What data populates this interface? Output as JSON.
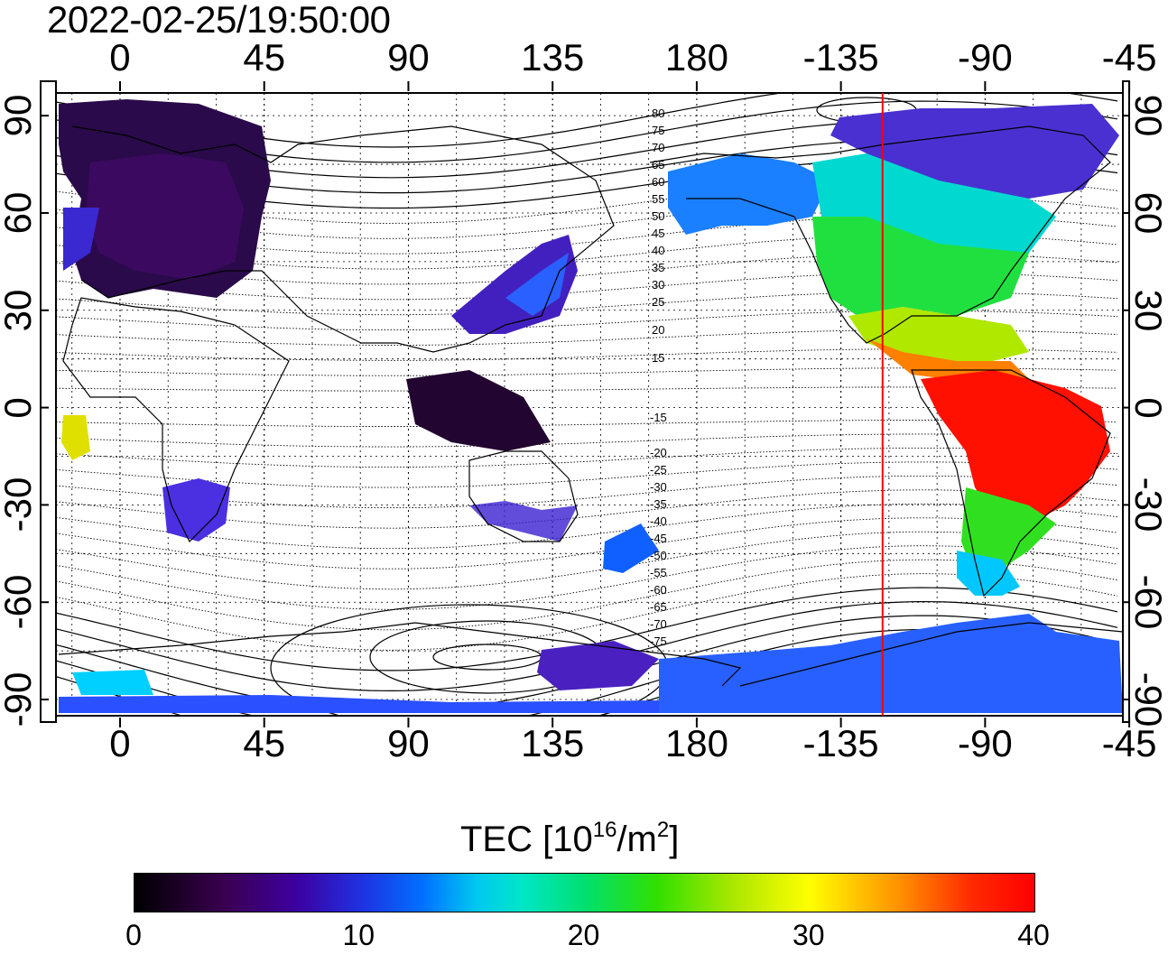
{
  "timestamp": "2022-02-25/19:50:00",
  "map": {
    "lon_ticks_top": [
      "0",
      "45",
      "90",
      "135",
      "180",
      "-135",
      "-90",
      "-45"
    ],
    "lon_ticks_bottom": [
      "0",
      "45",
      "90",
      "135",
      "180",
      "-135",
      "-90",
      "-45"
    ],
    "lat_ticks_left": [
      "90",
      "60",
      "30",
      "0",
      "-30",
      "-60",
      "-90"
    ],
    "lat_ticks_right": [
      "90",
      "60",
      "30",
      "0",
      "-30",
      "-60",
      "-90"
    ],
    "lon_range": [
      -20,
      313
    ],
    "lat_range": [
      -95,
      97
    ],
    "lon_ticks_values": [
      0,
      45,
      90,
      135,
      180,
      225,
      270,
      315
    ],
    "lat_ticks_values": [
      90,
      60,
      30,
      0,
      -30,
      -60,
      -90
    ],
    "grid": true,
    "terminator_line_color": "#ff0000",
    "terminator_longitude": -122,
    "contour_labels_north": [
      "80",
      "75",
      "70",
      "65",
      "60",
      "55",
      "50",
      "45",
      "40",
      "35",
      "30",
      "25",
      "20",
      "15"
    ],
    "contour_labels_south": [
      "-15",
      "-20",
      "-25",
      "-30",
      "-35",
      "-40",
      "-45",
      "-50",
      "-55",
      "-60",
      "-65",
      "-70",
      "-75"
    ]
  },
  "colorbar": {
    "title": "TEC  [10",
    "title_exp": "16",
    "title_unit_mid": "/m",
    "title_unit_exp": "2",
    "title_close": "]",
    "ticks": [
      "0",
      "10",
      "20",
      "30",
      "40"
    ],
    "tick_values": [
      0,
      10,
      20,
      30,
      40
    ],
    "min": 0,
    "max": 40
  }
}
